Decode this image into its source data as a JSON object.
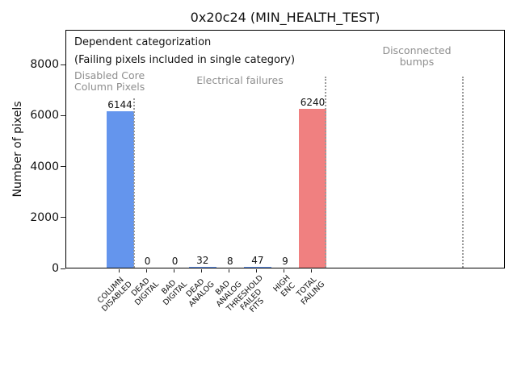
{
  "figure": {
    "title": "0x20c24 (MIN_HEALTH_TEST)"
  },
  "chart_data": {
    "type": "bar",
    "title": "0x20c24 (MIN_HEALTH_TEST)",
    "xlabel": "",
    "ylabel": "Number of pixels",
    "ylim": [
      0,
      9360
    ],
    "yticks": [
      0,
      2000,
      4000,
      6000,
      8000
    ],
    "grid": false,
    "legend": null,
    "categories": [
      "COLUMN\nDISABLED",
      "DEAD\nDIGITAL",
      "BAD\nDIGITAL",
      "DEAD\nANALOG",
      "BAD\nANALOG",
      "THRESHOLD\nFAILED\nFITS",
      "HIGH\nENC",
      "TOTAL\nFAILING"
    ],
    "values": [
      6144,
      0,
      0,
      32,
      8,
      47,
      9,
      6240
    ],
    "bar_value_labels": [
      "6144",
      "0",
      "0",
      "32",
      "8",
      "47",
      "9",
      "6240"
    ],
    "bar_colors": [
      "#6495ED",
      "#6495ED",
      "#6495ED",
      "#6495ED",
      "#6495ED",
      "#6495ED",
      "#6495ED",
      "#F08080"
    ],
    "annotations": {
      "dependent": "Dependent categorization",
      "failing_note": "(Failing pixels included in single category)",
      "disabled_core": "Disabled Core\nColumn Pixels",
      "electrical": "Electrical failures",
      "disconnected": "Disconnected\nbumps"
    },
    "annotation_color": "#8e8e8e",
    "separator_line_color": "#9a9a9a",
    "separator_line_style": "dotted"
  }
}
